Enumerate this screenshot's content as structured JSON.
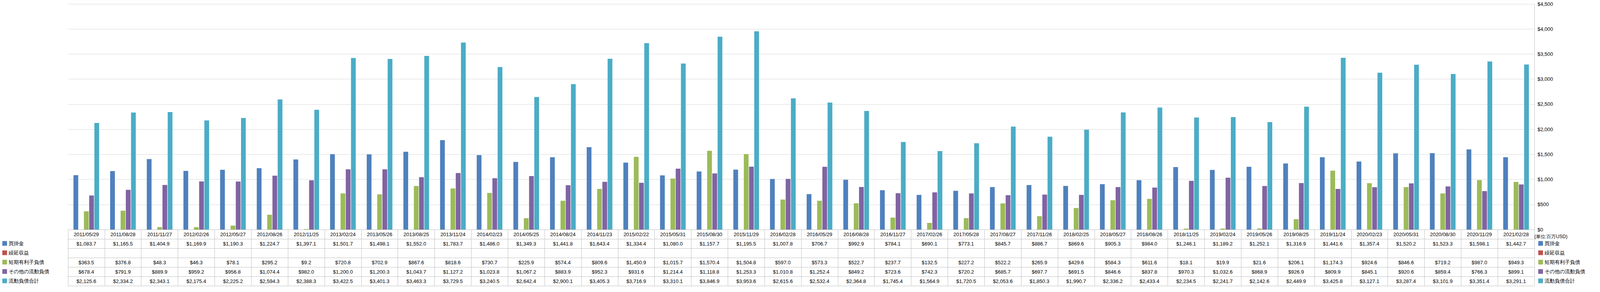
{
  "chart_data": {
    "type": "bar",
    "ylabel": "(単位:百万USD)",
    "categories": [
      "2011/05/29",
      "2011/08/28",
      "2011/11/27",
      "2012/02/26",
      "2012/05/27",
      "2012/08/26",
      "2012/11/25",
      "2013/02/24",
      "2013/05/26",
      "2013/08/25",
      "2013/11/24",
      "2014/02/23",
      "2014/05/25",
      "2014/08/24",
      "2014/11/23",
      "2015/02/22",
      "2015/05/31",
      "2015/08/30",
      "2015/11/29",
      "2016/02/28",
      "2016/05/29",
      "2016/08/28",
      "2016/11/27",
      "2017/02/26",
      "2017/05/28",
      "2017/08/27",
      "2017/11/26",
      "2018/02/25",
      "2018/05/27",
      "2018/08/26",
      "2018/11/25",
      "2019/02/24",
      "2019/05/26",
      "2019/08/25",
      "2019/11/24",
      "2020/02/23",
      "2020/05/31",
      "2020/08/30",
      "2020/11/29",
      "2021/02/28"
    ],
    "series": [
      {
        "name": "買掛金",
        "color": "#4f81bd",
        "values": [
          1083.7,
          1165.5,
          1404.9,
          1169.9,
          1190.3,
          1224.7,
          1397.1,
          1501.7,
          1498.1,
          1552.0,
          1783.7,
          1486.0,
          1349.3,
          1441.8,
          1643.4,
          1334.4,
          1080.0,
          1157.7,
          1195.5,
          1007.8,
          706.7,
          992.9,
          784.1,
          690.1,
          773.1,
          845.7,
          886.7,
          869.6,
          905.3,
          984.0,
          1246.1,
          1189.2,
          1252.1,
          1316.9,
          1441.6,
          1357.4,
          1520.2,
          1523.3,
          1598.1,
          1442.7
        ],
        "value_labels": [
          "$1,083.7",
          "$1,165.5",
          "$1,404.9",
          "$1,169.9",
          "$1,190.3",
          "$1,224.7",
          "$1,397.1",
          "$1,501.7",
          "$1,498.1",
          "$1,552.0",
          "$1,783.7",
          "$1,486.0",
          "$1,349.3",
          "$1,441.8",
          "$1,643.4",
          "$1,334.4",
          "$1,080.0",
          "$1,157.7",
          "$1,195.5",
          "$1,007.8",
          "$706.7",
          "$992.9",
          "$784.1",
          "$690.1",
          "$773.1",
          "$845.7",
          "$886.7",
          "$869.6",
          "$905.3",
          "$984.0",
          "$1,246.1",
          "$1,189.2",
          "$1,252.1",
          "$1,316.9",
          "$1,441.6",
          "$1,357.4",
          "$1,520.2",
          "$1,523.3",
          "$1,598.1",
          "$1,442.7"
        ]
      },
      {
        "name": "繰延収益",
        "color": "#c0504d",
        "values": [
          null,
          null,
          null,
          null,
          null,
          null,
          null,
          null,
          null,
          null,
          null,
          null,
          null,
          null,
          null,
          null,
          null,
          null,
          null,
          null,
          null,
          null,
          null,
          null,
          null,
          null,
          null,
          null,
          null,
          null,
          null,
          null,
          null,
          null,
          null,
          null,
          null,
          null,
          null,
          null
        ],
        "value_labels": [
          null,
          null,
          null,
          null,
          null,
          null,
          null,
          null,
          null,
          null,
          null,
          null,
          null,
          null,
          null,
          null,
          null,
          null,
          null,
          null,
          null,
          null,
          null,
          null,
          null,
          null,
          null,
          null,
          null,
          null,
          null,
          null,
          null,
          null,
          null,
          null,
          null,
          null,
          null,
          null
        ]
      },
      {
        "name": "短期有利子負債",
        "color": "#9bbb59",
        "values": [
          363.5,
          376.8,
          48.3,
          46.3,
          78.1,
          295.2,
          9.2,
          720.8,
          702.9,
          867.6,
          818.6,
          730.7,
          225.9,
          574.4,
          809.6,
          1450.9,
          1015.7,
          1570.4,
          1504.8,
          597.0,
          573.3,
          522.7,
          237.7,
          132.5,
          227.2,
          522.2,
          265.9,
          429.6,
          584.3,
          611.6,
          18.1,
          19.9,
          21.6,
          206.1,
          1174.3,
          924.6,
          846.6,
          719.2,
          987.0,
          949.3
        ],
        "value_labels": [
          "$363.5",
          "$376.8",
          "$48.3",
          "$46.3",
          "$78.1",
          "$295.2",
          "$9.2",
          "$720.8",
          "$702.9",
          "$867.6",
          "$818.6",
          "$730.7",
          "$225.9",
          "$574.4",
          "$809.6",
          "$1,450.9",
          "$1,015.7",
          "$1,570.4",
          "$1,504.8",
          "$597.0",
          "$573.3",
          "$522.7",
          "$237.7",
          "$132.5",
          "$227.2",
          "$522.2",
          "$265.9",
          "$429.6",
          "$584.3",
          "$611.6",
          "$18.1",
          "$19.9",
          "$21.6",
          "$206.1",
          "$1,174.3",
          "$924.6",
          "$846.6",
          "$719.2",
          "$987.0",
          "$949.3"
        ]
      },
      {
        "name": "その他の流動負債",
        "color": "#8064a2",
        "values": [
          678.4,
          791.9,
          889.9,
          959.2,
          956.8,
          1074.4,
          982.0,
          1200.0,
          1200.3,
          1043.7,
          1127.2,
          1023.8,
          1067.2,
          883.9,
          952.3,
          931.6,
          1214.4,
          1118.8,
          1253.3,
          1010.8,
          1252.4,
          849.2,
          723.6,
          742.3,
          720.2,
          685.7,
          697.7,
          691.5,
          846.6,
          837.8,
          970.3,
          1032.6,
          868.9,
          926.9,
          809.9,
          845.1,
          920.6,
          859.4,
          766.3,
          899.1
        ],
        "value_labels": [
          "$678.4",
          "$791.9",
          "$889.9",
          "$959.2",
          "$956.8",
          "$1,074.4",
          "$982.0",
          "$1,200.0",
          "$1,200.3",
          "$1,043.7",
          "$1,127.2",
          "$1,023.8",
          "$1,067.2",
          "$883.9",
          "$952.3",
          "$931.6",
          "$1,214.4",
          "$1,118.8",
          "$1,253.3",
          "$1,010.8",
          "$1,252.4",
          "$849.2",
          "$723.6",
          "$742.3",
          "$720.2",
          "$685.7",
          "$697.7",
          "$691.5",
          "$846.6",
          "$837.8",
          "$970.3",
          "$1,032.6",
          "$868.9",
          "$926.9",
          "$809.9",
          "$845.1",
          "$920.6",
          "$859.4",
          "$766.3",
          "$899.1"
        ]
      },
      {
        "name": "流動負債合計",
        "color": "#4bacc6",
        "values": [
          2125.6,
          2334.2,
          2343.1,
          2175.4,
          2225.2,
          2594.3,
          2388.3,
          3422.5,
          3401.3,
          3463.3,
          3729.5,
          3240.5,
          2642.4,
          2900.1,
          3405.3,
          3716.9,
          3310.1,
          3846.9,
          3953.6,
          2615.6,
          2532.4,
          2364.8,
          1745.4,
          1564.9,
          1720.5,
          2053.6,
          1850.3,
          1990.7,
          2336.2,
          2433.4,
          2234.5,
          2241.7,
          2142.6,
          2449.9,
          3425.8,
          3127.1,
          3287.4,
          3101.9,
          3351.4,
          3291.1
        ],
        "value_labels": [
          "$2,125.6",
          "$2,334.2",
          "$2,343.1",
          "$2,175.4",
          "$2,225.2",
          "$2,594.3",
          "$2,388.3",
          "$3,422.5",
          "$3,401.3",
          "$3,463.3",
          "$3,729.5",
          "$3,240.5",
          "$2,642.4",
          "$2,900.1",
          "$3,405.3",
          "$3,716.9",
          "$3,310.1",
          "$3,846.9",
          "$3,953.6",
          "$2,615.6",
          "$2,532.4",
          "$2,364.8",
          "$1,745.4",
          "$1,564.9",
          "$1,720.5",
          "$2,053.6",
          "$1,850.3",
          "$1,990.7",
          "$2,336.2",
          "$2,433.4",
          "$2,234.5",
          "$2,241.7",
          "$2,142.6",
          "$2,449.9",
          "$3,425.8",
          "$3,127.1",
          "$3,287.4",
          "$3,101.9",
          "$3,351.4",
          "$3,291.1"
        ]
      }
    ],
    "ylim": [
      0,
      4500
    ],
    "yticks": [
      {
        "value": 0,
        "label": "$0"
      },
      {
        "value": 500,
        "label": "$500"
      },
      {
        "value": 1000,
        "label": "$1,000"
      },
      {
        "value": 1500,
        "label": "$1,500"
      },
      {
        "value": 2000,
        "label": "$2,000"
      },
      {
        "value": 2500,
        "label": "$2,500"
      },
      {
        "value": 3000,
        "label": "$3,000"
      },
      {
        "value": 3500,
        "label": "$3,500"
      },
      {
        "value": 4000,
        "label": "$4,000"
      },
      {
        "value": 4500,
        "label": "$4,500"
      }
    ],
    "grid": true
  }
}
